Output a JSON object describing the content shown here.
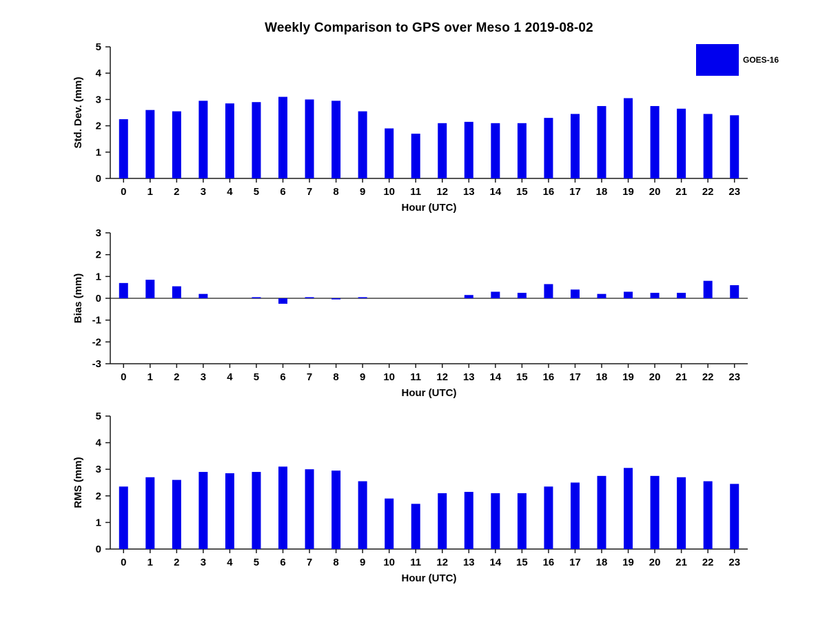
{
  "title": "Weekly Comparison to GPS over Meso 1 2019-08-02",
  "legend": {
    "label": "GOES-16",
    "color": "#0000ee",
    "position": "top-right"
  },
  "chart_data": [
    {
      "type": "bar",
      "series_name": "GOES-16",
      "ylabel": "Std. Dev. (mm)",
      "xlabel": "Hour (UTC)",
      "categories": [
        "0",
        "1",
        "2",
        "3",
        "4",
        "5",
        "6",
        "7",
        "8",
        "9",
        "10",
        "11",
        "12",
        "13",
        "14",
        "15",
        "16",
        "17",
        "18",
        "19",
        "20",
        "21",
        "22",
        "23"
      ],
      "values": [
        2.25,
        2.6,
        2.55,
        2.95,
        2.85,
        2.9,
        3.1,
        3.0,
        2.95,
        2.55,
        1.9,
        1.7,
        2.1,
        2.15,
        2.1,
        2.1,
        2.3,
        2.45,
        2.75,
        3.05,
        2.75,
        2.65,
        2.45,
        2.4
      ],
      "ylim": [
        0,
        5
      ],
      "yticks": [
        0,
        1,
        2,
        3,
        4,
        5
      ],
      "grid": false,
      "bar_color": "#0000ee"
    },
    {
      "type": "bar",
      "series_name": "GOES-16",
      "ylabel": "Bias (mm)",
      "xlabel": "Hour (UTC)",
      "categories": [
        "0",
        "1",
        "2",
        "3",
        "4",
        "5",
        "6",
        "7",
        "8",
        "9",
        "10",
        "11",
        "12",
        "13",
        "14",
        "15",
        "16",
        "17",
        "18",
        "19",
        "20",
        "21",
        "22",
        "23"
      ],
      "values": [
        0.7,
        0.85,
        0.55,
        0.2,
        0.0,
        0.05,
        -0.25,
        0.05,
        -0.05,
        0.05,
        0.0,
        0.0,
        0.0,
        0.15,
        0.3,
        0.25,
        0.65,
        0.4,
        0.2,
        0.3,
        0.25,
        0.25,
        0.8,
        0.6
      ],
      "ylim": [
        -3,
        3
      ],
      "yticks": [
        -3,
        -2,
        -1,
        0,
        1,
        2,
        3
      ],
      "grid": false,
      "bar_color": "#0000ee"
    },
    {
      "type": "bar",
      "series_name": "GOES-16",
      "ylabel": "RMS (mm)",
      "xlabel": "Hour (UTC)",
      "categories": [
        "0",
        "1",
        "2",
        "3",
        "4",
        "5",
        "6",
        "7",
        "8",
        "9",
        "10",
        "11",
        "12",
        "13",
        "14",
        "15",
        "16",
        "17",
        "18",
        "19",
        "20",
        "21",
        "22",
        "23"
      ],
      "values": [
        2.35,
        2.7,
        2.6,
        2.9,
        2.85,
        2.9,
        3.1,
        3.0,
        2.95,
        2.55,
        1.9,
        1.7,
        2.1,
        2.15,
        2.1,
        2.1,
        2.35,
        2.5,
        2.75,
        3.05,
        2.75,
        2.7,
        2.55,
        2.45
      ],
      "ylim": [
        0,
        5
      ],
      "yticks": [
        0,
        1,
        2,
        3,
        4,
        5
      ],
      "grid": false,
      "bar_color": "#0000ee"
    }
  ]
}
